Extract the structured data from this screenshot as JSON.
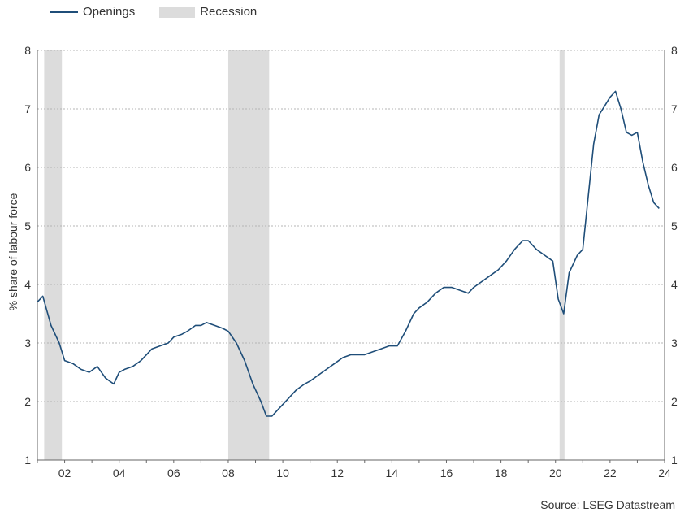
{
  "chart_data": {
    "type": "line",
    "title": "",
    "xlabel": "",
    "ylabel": "% share of labour force",
    "ylim": [
      1,
      8
    ],
    "xlim": [
      2001.0,
      2024.0
    ],
    "grid": true,
    "legend": "top-left",
    "y_ticks": [
      "1",
      "2",
      "3",
      "4",
      "5",
      "6",
      "7",
      "8"
    ],
    "x_ticks": [
      "02",
      "04",
      "06",
      "08",
      "10",
      "12",
      "14",
      "16",
      "18",
      "20",
      "22",
      "24"
    ],
    "series": [
      {
        "name": "Openings",
        "color": "#1f4e79",
        "x": [
          2001.0,
          2001.2,
          2001.5,
          2001.8,
          2002.0,
          2002.3,
          2002.6,
          2002.9,
          2003.2,
          2003.5,
          2003.8,
          2004.0,
          2004.2,
          2004.5,
          2004.8,
          2005.0,
          2005.2,
          2005.5,
          2005.8,
          2006.0,
          2006.3,
          2006.5,
          2006.8,
          2007.0,
          2007.2,
          2007.5,
          2007.8,
          2008.0,
          2008.3,
          2008.6,
          2008.9,
          2009.2,
          2009.4,
          2009.6,
          2009.9,
          2010.2,
          2010.5,
          2010.8,
          2011.0,
          2011.3,
          2011.6,
          2011.9,
          2012.2,
          2012.5,
          2012.8,
          2013.0,
          2013.3,
          2013.6,
          2013.9,
          2014.2,
          2014.5,
          2014.8,
          2015.0,
          2015.3,
          2015.6,
          2015.9,
          2016.2,
          2016.5,
          2016.8,
          2017.0,
          2017.3,
          2017.6,
          2017.9,
          2018.2,
          2018.5,
          2018.8,
          2019.0,
          2019.3,
          2019.6,
          2019.9,
          2020.1,
          2020.3,
          2020.5,
          2020.8,
          2021.0,
          2021.2,
          2021.4,
          2021.6,
          2021.8,
          2022.0,
          2022.2,
          2022.4,
          2022.6,
          2022.8,
          2023.0,
          2023.2,
          2023.4,
          2023.6,
          2023.8
        ],
        "values": [
          3.7,
          3.8,
          3.3,
          3.0,
          2.7,
          2.65,
          2.55,
          2.5,
          2.6,
          2.4,
          2.3,
          2.5,
          2.55,
          2.6,
          2.7,
          2.8,
          2.9,
          2.95,
          3.0,
          3.1,
          3.15,
          3.2,
          3.3,
          3.3,
          3.35,
          3.3,
          3.25,
          3.2,
          3.0,
          2.7,
          2.3,
          2.0,
          1.75,
          1.75,
          1.9,
          2.05,
          2.2,
          2.3,
          2.35,
          2.45,
          2.55,
          2.65,
          2.75,
          2.8,
          2.8,
          2.8,
          2.85,
          2.9,
          2.95,
          2.95,
          3.2,
          3.5,
          3.6,
          3.7,
          3.85,
          3.95,
          3.95,
          3.9,
          3.85,
          3.95,
          4.05,
          4.15,
          4.25,
          4.4,
          4.6,
          4.75,
          4.75,
          4.6,
          4.5,
          4.4,
          3.75,
          3.5,
          4.2,
          4.5,
          4.6,
          5.5,
          6.4,
          6.9,
          7.05,
          7.2,
          7.3,
          7.0,
          6.6,
          6.55,
          6.6,
          6.1,
          5.7,
          5.4,
          5.3
        ]
      },
      {
        "name": "Recession",
        "color": "#dcdcdc",
        "type": "shaded-band",
        "ranges": [
          [
            2001.25,
            2001.9
          ],
          [
            2008.0,
            2009.5
          ],
          [
            2020.15,
            2020.33
          ]
        ]
      }
    ]
  },
  "source_text": "Source: LSEG Datastream"
}
